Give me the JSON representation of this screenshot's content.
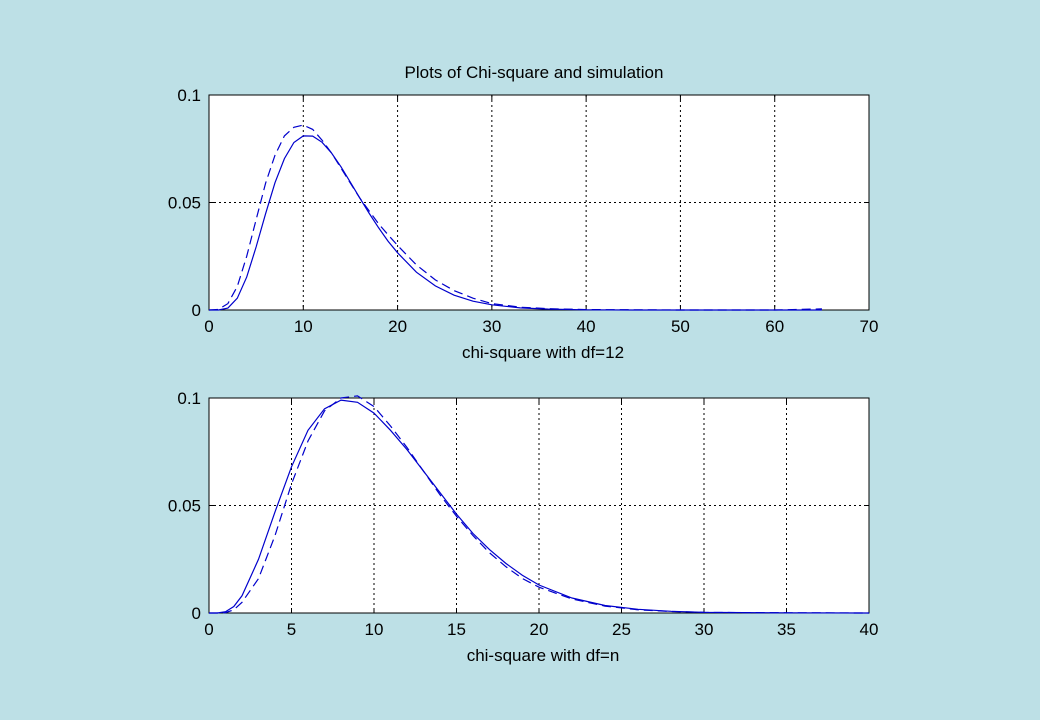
{
  "figure": {
    "background": "#bde0e6",
    "title": "Plots of Chi-square and simulation"
  },
  "chart_data": [
    {
      "type": "line",
      "title": "Plots of Chi-square and simulation",
      "xlabel": "chi-square with df=12",
      "ylabel": "",
      "xlim": [
        0,
        70
      ],
      "ylim": [
        0,
        0.1
      ],
      "xticks": [
        0,
        10,
        20,
        30,
        40,
        50,
        60,
        70
      ],
      "yticks": [
        0,
        0.05,
        0.1
      ],
      "xtick_labels": [
        "0",
        "10",
        "20",
        "30",
        "40",
        "50",
        "60",
        "70"
      ],
      "ytick_labels": [
        "0",
        "0.05",
        "0.1"
      ],
      "grid": true,
      "series": [
        {
          "style": "solid",
          "color": "#0000cc",
          "x": [
            0,
            1,
            2,
            3,
            4,
            5,
            6,
            7,
            8,
            9,
            10,
            11,
            12,
            13,
            14,
            15,
            16,
            17,
            18,
            19,
            20,
            22,
            24,
            26,
            28,
            30,
            33,
            36,
            40,
            45,
            50,
            55,
            60,
            65
          ],
          "y": [
            0,
            0.0,
            0.0009,
            0.0055,
            0.0153,
            0.0293,
            0.0448,
            0.0592,
            0.0704,
            0.0779,
            0.081,
            0.0809,
            0.078,
            0.073,
            0.0666,
            0.0594,
            0.052,
            0.0449,
            0.0382,
            0.032,
            0.0266,
            0.0176,
            0.0112,
            0.0069,
            0.0041,
            0.0024,
            0.001,
            0.0004,
            0.0001,
            0.0,
            0,
            0,
            0,
            0
          ]
        },
        {
          "style": "dashed",
          "color": "#0000cc",
          "x": [
            0,
            1,
            2,
            3,
            4,
            5,
            6,
            7,
            8,
            9,
            10,
            11,
            12,
            13,
            14,
            15,
            16,
            17,
            18,
            19,
            20,
            22,
            24,
            26,
            28,
            30,
            33,
            36,
            40,
            45,
            50,
            55,
            60,
            65
          ],
          "y": [
            0,
            0.0003,
            0.003,
            0.011,
            0.025,
            0.042,
            0.059,
            0.072,
            0.081,
            0.085,
            0.086,
            0.084,
            0.079,
            0.073,
            0.066,
            0.059,
            0.052,
            0.046,
            0.04,
            0.035,
            0.03,
            0.021,
            0.014,
            0.009,
            0.0055,
            0.003,
            0.0013,
            0.0006,
            0.0002,
            0.0001,
            0,
            0,
            0,
            0.0005
          ]
        }
      ]
    },
    {
      "type": "line",
      "title": "",
      "xlabel": "chi-square with df=n",
      "ylabel": "",
      "xlim": [
        0,
        40
      ],
      "ylim": [
        0,
        0.1
      ],
      "xticks": [
        0,
        5,
        10,
        15,
        20,
        25,
        30,
        35,
        40
      ],
      "yticks": [
        0,
        0.05,
        0.1
      ],
      "xtick_labels": [
        "0",
        "5",
        "10",
        "15",
        "20",
        "25",
        "30",
        "35",
        "40"
      ],
      "ytick_labels": [
        "0",
        "0.05",
        "0.1"
      ],
      "grid": true,
      "series": [
        {
          "style": "solid",
          "color": "#0000cc",
          "x": [
            0,
            0.5,
            1,
            1.5,
            2,
            3,
            4,
            5,
            6,
            7,
            8,
            9,
            10,
            11,
            12,
            13,
            14,
            15,
            16,
            17,
            18,
            19,
            20,
            22,
            24,
            26,
            28,
            30,
            35,
            40
          ],
          "y": [
            0,
            0.0,
            0.0006,
            0.003,
            0.008,
            0.025,
            0.047,
            0.068,
            0.085,
            0.095,
            0.099,
            0.098,
            0.093,
            0.085,
            0.076,
            0.066,
            0.056,
            0.046,
            0.037,
            0.0295,
            0.023,
            0.0175,
            0.013,
            0.007,
            0.0035,
            0.0017,
            0.0008,
            0.0003,
            0.0001,
            0.0
          ]
        },
        {
          "style": "dashed",
          "color": "#0000cc",
          "x": [
            0,
            0.5,
            1,
            1.5,
            2,
            3,
            4,
            5,
            6,
            7,
            8,
            9,
            10,
            11,
            12,
            13,
            14,
            15,
            16,
            17,
            18,
            19,
            20,
            22,
            24,
            26,
            28,
            30,
            35,
            40
          ],
          "y": [
            0,
            0.0,
            0.0002,
            0.0015,
            0.005,
            0.016,
            0.036,
            0.06,
            0.08,
            0.094,
            0.1,
            0.101,
            0.096,
            0.087,
            0.077,
            0.066,
            0.055,
            0.045,
            0.036,
            0.028,
            0.0215,
            0.016,
            0.012,
            0.0065,
            0.0032,
            0.0015,
            0.0007,
            0.0003,
            0.0001,
            0.0
          ]
        }
      ]
    }
  ]
}
